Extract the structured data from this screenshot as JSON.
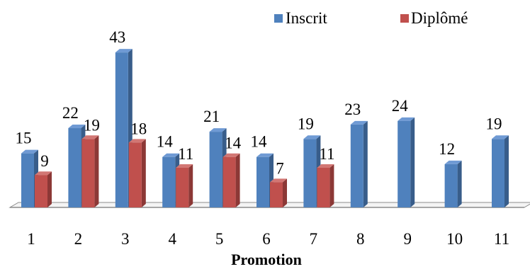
{
  "chart_data": {
    "type": "bar",
    "categories": [
      "1",
      "2",
      "3",
      "4",
      "5",
      "6",
      "7",
      "8",
      "9",
      "10",
      "11"
    ],
    "series": [
      {
        "name": "Inscrit",
        "values": [
          15,
          22,
          43,
          14,
          21,
          14,
          19,
          23,
          24,
          12,
          19
        ]
      },
      {
        "name": "Diplômé",
        "values": [
          9,
          19,
          18,
          11,
          14,
          7,
          11,
          null,
          null,
          null,
          null
        ]
      }
    ],
    "title": "",
    "xlabel": "Promotion",
    "ylabel": "",
    "ylim": [
      0,
      43
    ],
    "grid": false,
    "legend_position": "top-right",
    "three_d": true,
    "colors": {
      "Inscrit": {
        "front": "#4f81bd",
        "side": "#385d8a",
        "top": "#6f9ad4"
      },
      "Diplômé": {
        "front": "#c0504d",
        "side": "#8c3836",
        "top": "#d27774"
      },
      "floor_stroke": "#8c8c8c",
      "floor_fill": "#f4f4f4"
    }
  }
}
